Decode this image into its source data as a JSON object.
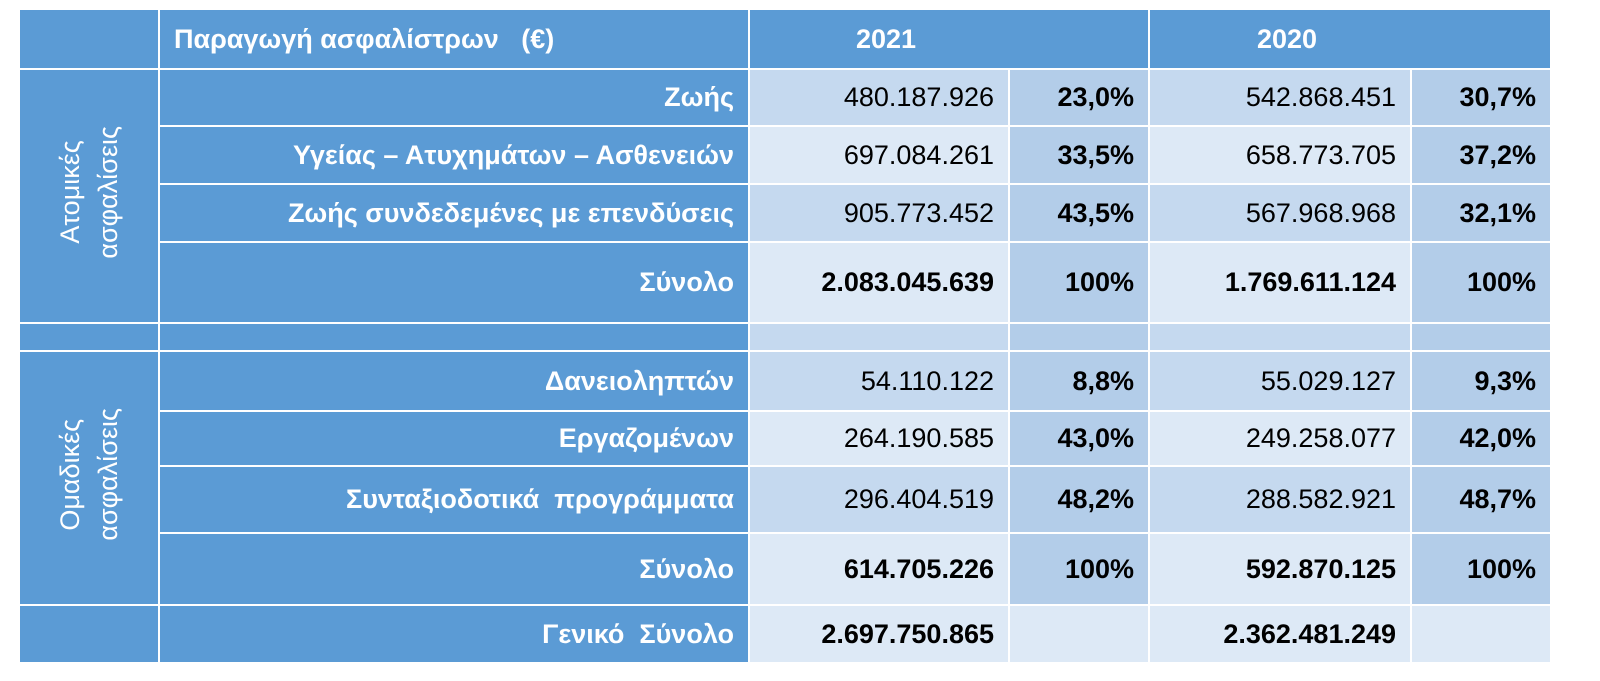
{
  "header": {
    "title": "Παραγωγή ασφαλίστρων   (€)",
    "years": [
      "2021",
      "2020"
    ]
  },
  "groups": [
    {
      "label": [
        "Ατομικές",
        "ασφαλίσεις"
      ],
      "rows": [
        {
          "label": "Ζωής",
          "cells": [
            "480.187.926",
            "23,0%",
            "542.868.451",
            "30,7%"
          ]
        },
        {
          "label": "Υγείας – Ατυχημάτων – Ασθενειών",
          "cells": [
            "697.084.261",
            "33,5%",
            "658.773.705",
            "37,2%"
          ]
        },
        {
          "label": "Ζωής συνδεδεμένες με επενδύσεις",
          "cells": [
            "905.773.452",
            "43,5%",
            "567.968.968",
            "32,1%"
          ]
        },
        {
          "label": "Σύνολο",
          "cells": [
            "2.083.045.639",
            "100%",
            "1.769.611.124",
            "100%"
          ]
        }
      ]
    },
    {
      "label": [
        "Ομαδικές",
        "ασφαλίσεις"
      ],
      "rows": [
        {
          "label": "Δανειοληπτών",
          "cells": [
            "54.110.122",
            "8,8%",
            "55.029.127",
            "9,3%"
          ]
        },
        {
          "label": "Εργαζομένων",
          "cells": [
            "264.190.585",
            "43,0%",
            "249.258.077",
            "42,0%"
          ]
        },
        {
          "label": "Συνταξιοδοτικά  προγράμματα",
          "cells": [
            "296.404.519",
            "48,2%",
            "288.582.921",
            "48,7%"
          ]
        },
        {
          "label": "Σύνολο",
          "cells": [
            "614.705.226",
            "100%",
            "592.870.125",
            "100%"
          ]
        }
      ]
    }
  ],
  "grand_total": {
    "label": "Γενικό  Σύνολο",
    "cells": [
      "2.697.750.865",
      "2.362.481.249"
    ]
  }
}
